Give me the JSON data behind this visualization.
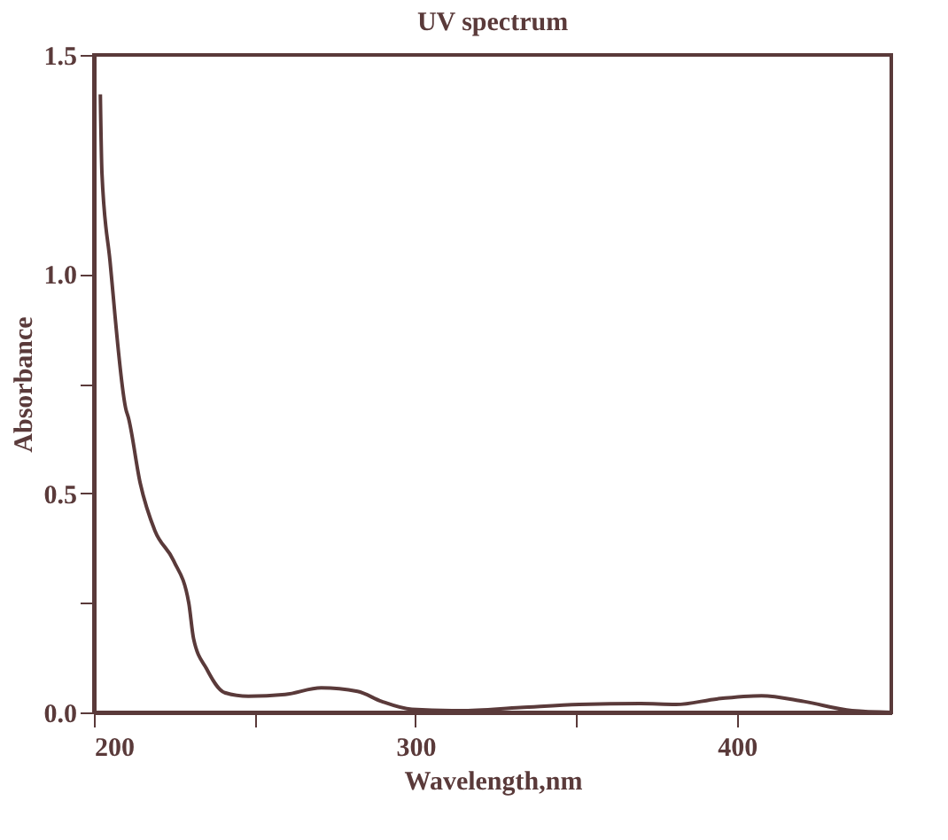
{
  "chart_data": {
    "type": "line",
    "title": "UV spectrum",
    "xlabel": "Wavelength,nm",
    "ylabel": "Absorbance",
    "xlim": [
      200,
      448
    ],
    "ylim": [
      0,
      1.5
    ],
    "xticks": [
      200,
      {
        "value": 250,
        "label": null
      },
      300,
      {
        "value": 350,
        "label": null
      },
      400
    ],
    "yticks": [
      {
        "value": 0,
        "label": "0.0"
      },
      {
        "value": 0.25,
        "label": null
      },
      0.5,
      {
        "value": 0.75,
        "label": null
      },
      {
        "value": 1,
        "label": "1.0"
      },
      1.5
    ],
    "grid": false,
    "marker": "none",
    "line_style": "solid",
    "series": [
      {
        "color": "#5a3a3a",
        "x": [
          202,
          202.5,
          205,
          210,
          210.7,
          214.4,
          219,
          224.8,
          229.5,
          231,
          235,
          240.7,
          248,
          259.5,
          270.7,
          282,
          289.5,
          298.9,
          314,
          332.6,
          351,
          370,
          381,
          394,
          407.7,
          420.8,
          435.8,
          448
        ],
        "values": [
          1.41,
          1.23,
          1.03,
          0.69,
          0.673,
          0.523,
          0.414,
          0.346,
          0.25,
          0.168,
          0.1,
          0.045,
          0.037,
          0.041,
          0.056,
          0.048,
          0.025,
          0.007,
          0.004,
          0.011,
          0.018,
          0.02,
          0.018,
          0.031,
          0.038,
          0.025,
          0.004,
          0
        ]
      }
    ]
  }
}
